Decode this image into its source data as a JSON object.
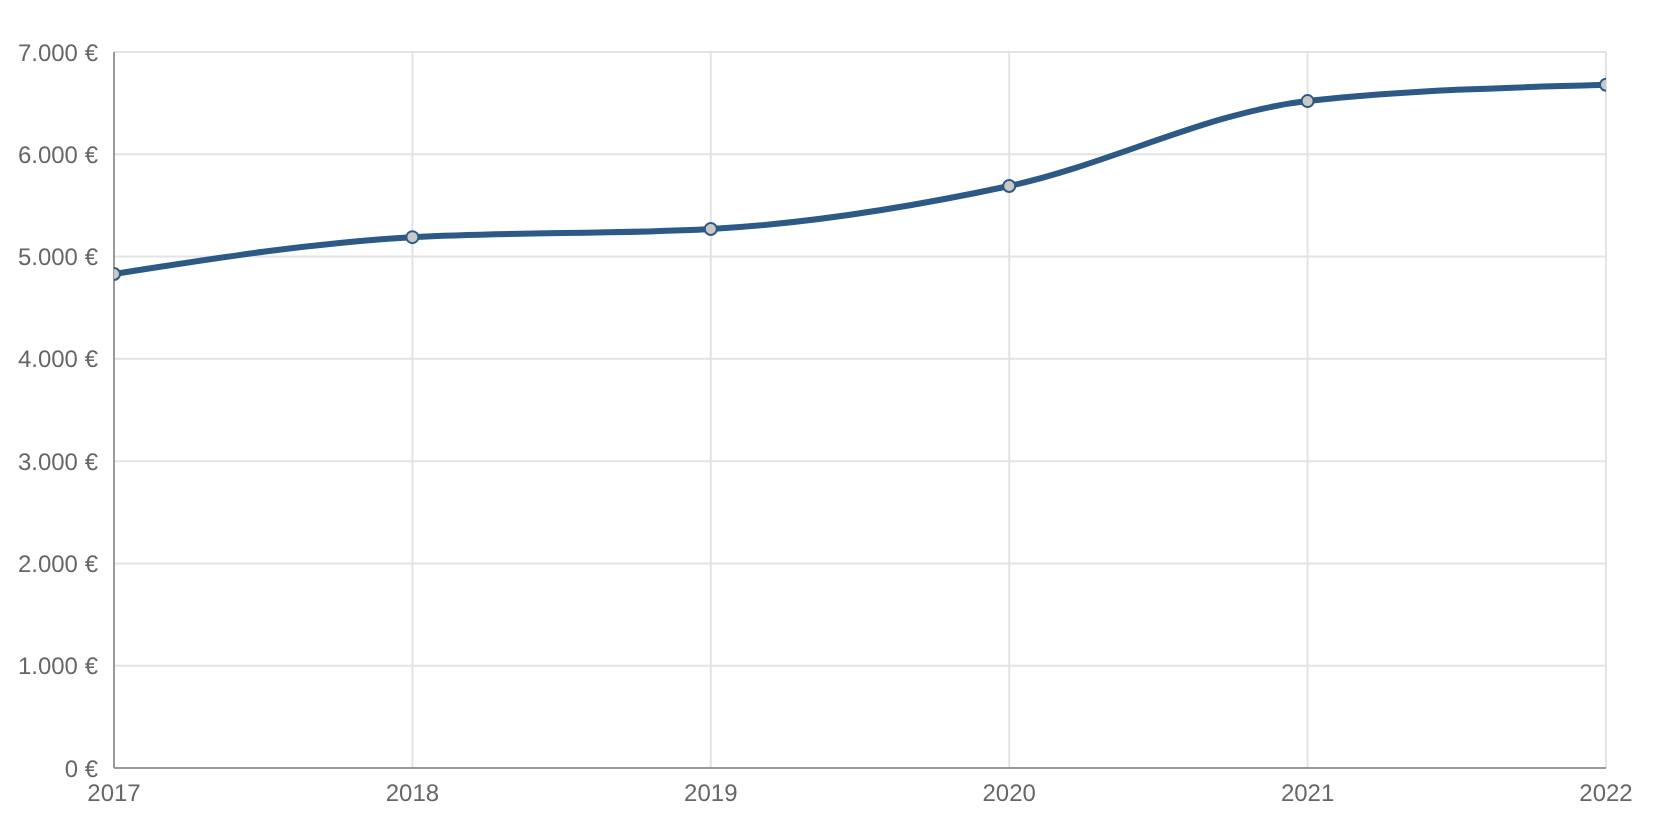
{
  "chart_data": {
    "type": "line",
    "x": [
      2017,
      2018,
      2019,
      2020,
      2021,
      2022
    ],
    "series": [
      {
        "color": "#2c5985",
        "values": [
          4830,
          5190,
          5270,
          5690,
          6520,
          6680
        ]
      }
    ],
    "xlim": [
      2017,
      2022
    ],
    "xticks": [
      2017,
      2018,
      2019,
      2020,
      2021,
      2022
    ],
    "ylim": [
      0,
      7000
    ],
    "yticks": [
      {
        "value": 0,
        "label": "0 €"
      },
      {
        "value": 1000,
        "label": "1.000 €"
      },
      {
        "value": 2000,
        "label": "2.000 €"
      },
      {
        "value": 3000,
        "label": "3.000 €"
      },
      {
        "value": 4000,
        "label": "4.000 €"
      },
      {
        "value": 5000,
        "label": "5.000 €"
      },
      {
        "value": 6000,
        "label": "6.000 €"
      },
      {
        "value": 7000,
        "label": "7.000 €"
      }
    ],
    "grid": true,
    "marker": "circle",
    "line_style": "solid"
  }
}
